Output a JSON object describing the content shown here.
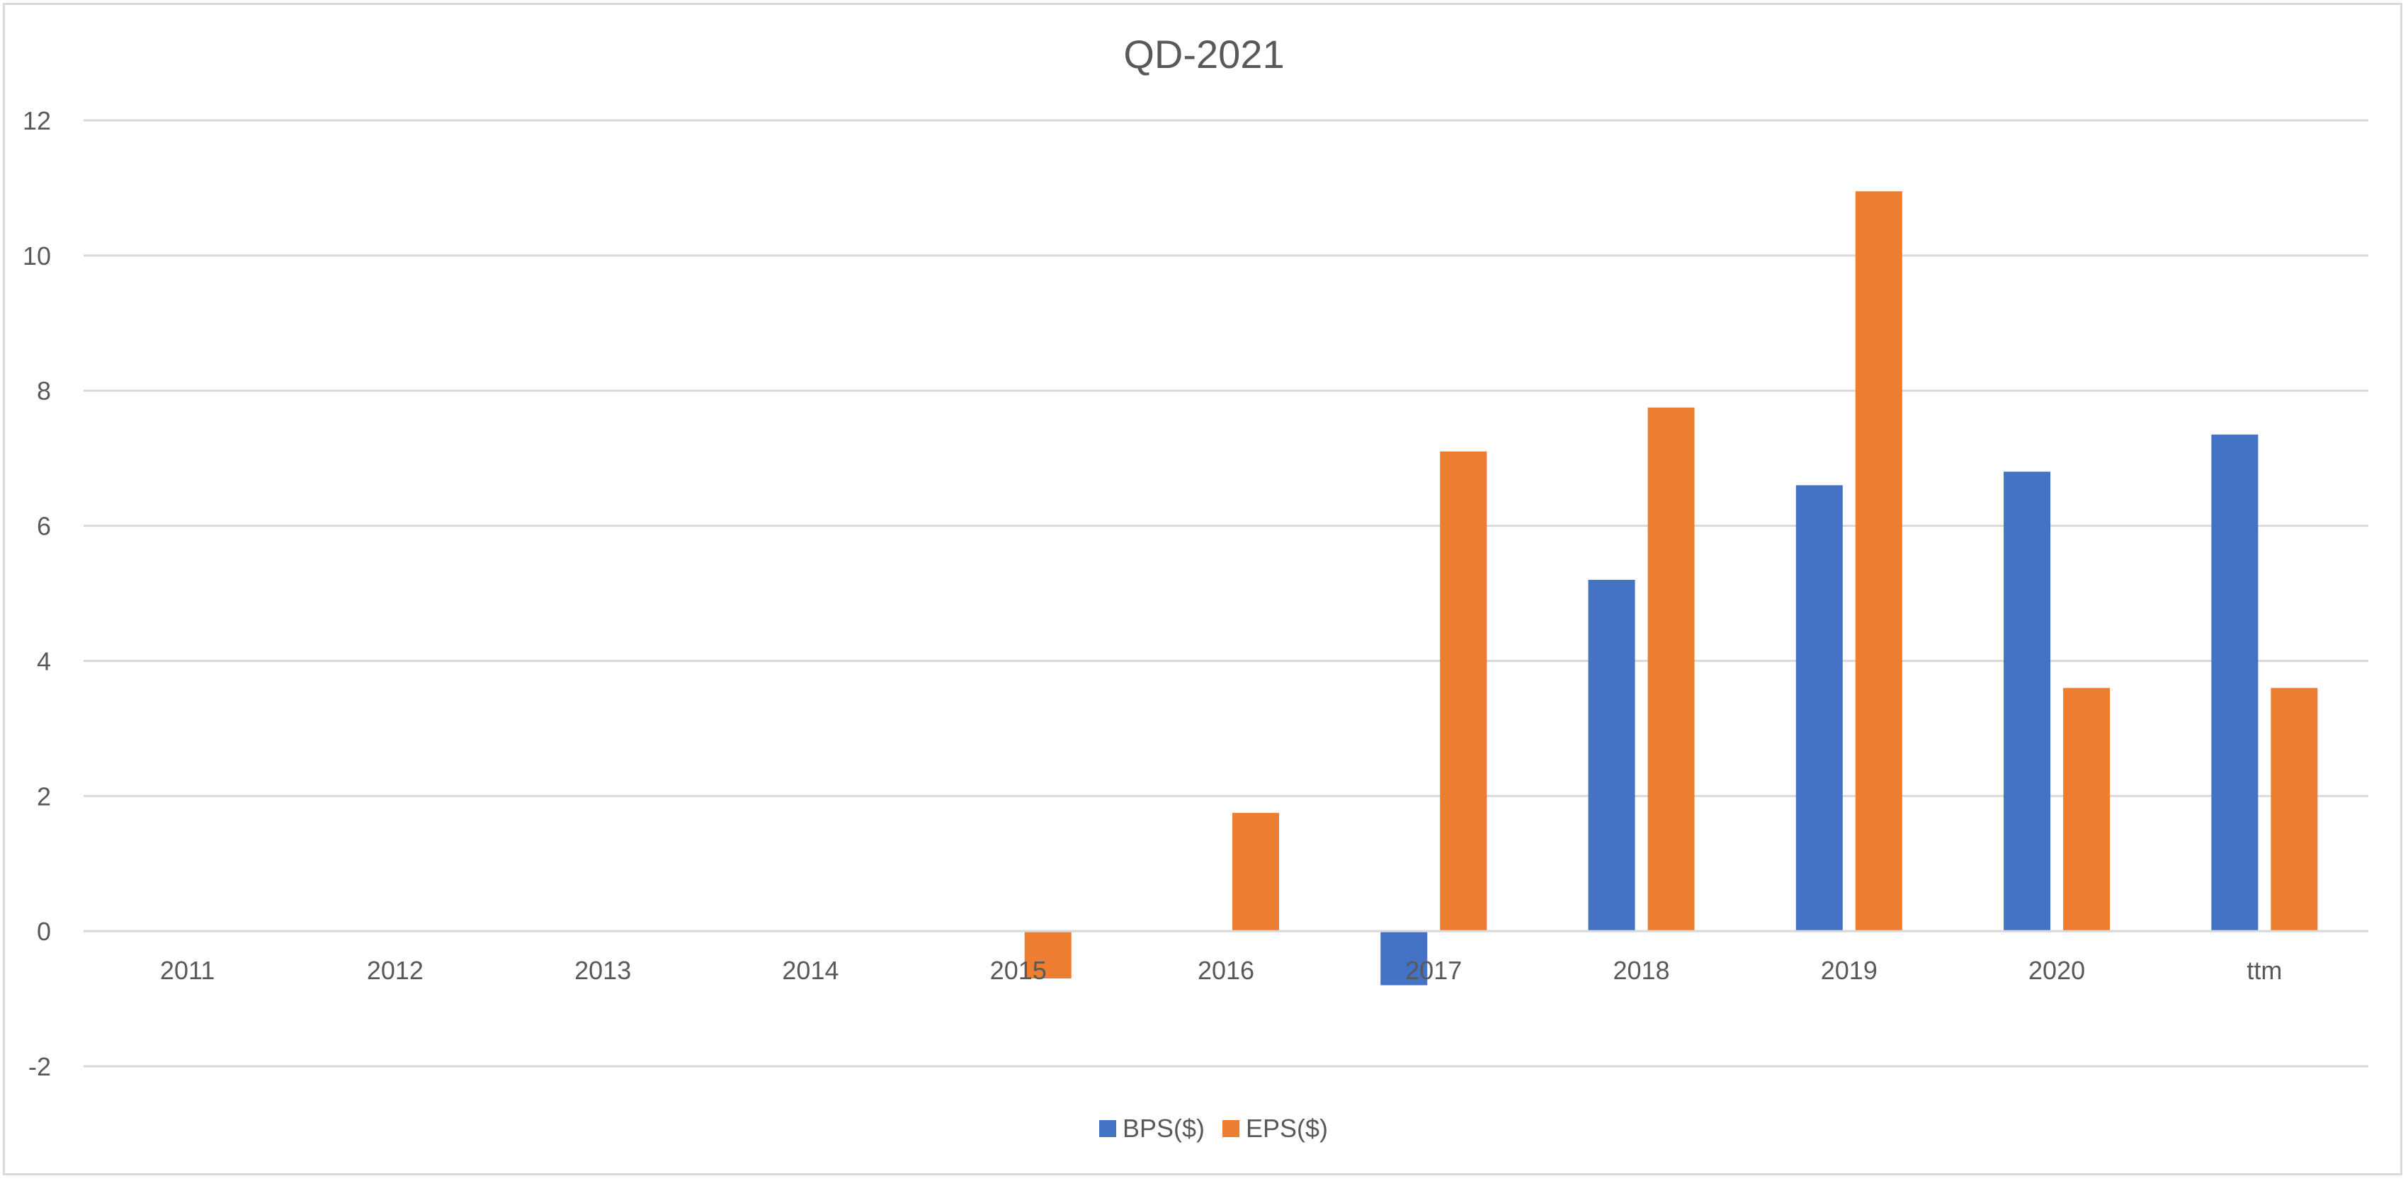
{
  "chart_data": {
    "type": "bar",
    "title": "QD-2021",
    "categories": [
      "2011",
      "2012",
      "2013",
      "2014",
      "2015",
      "2016",
      "2017",
      "2018",
      "2019",
      "2020",
      "ttm"
    ],
    "series": [
      {
        "name": "BPS($)",
        "color": "#4472C4",
        "values": [
          null,
          null,
          null,
          null,
          null,
          null,
          -0.8,
          5.2,
          6.6,
          6.8,
          7.35
        ]
      },
      {
        "name": "EPS($)",
        "color": "#ED7D31",
        "values": [
          null,
          null,
          null,
          null,
          -0.7,
          1.75,
          7.1,
          7.75,
          10.95,
          3.6,
          3.6
        ]
      }
    ],
    "ylim": [
      -2,
      12
    ],
    "yticks": [
      "-2",
      "0",
      "2",
      "4",
      "6",
      "8",
      "10",
      "12"
    ],
    "xlabel": "",
    "ylabel": "",
    "grid": true,
    "legend": "bottom"
  }
}
